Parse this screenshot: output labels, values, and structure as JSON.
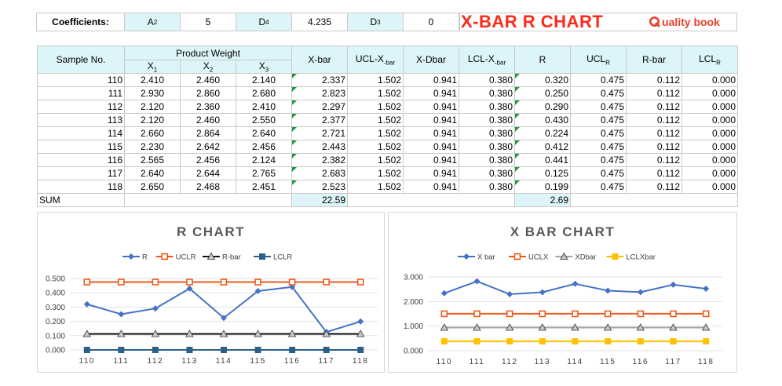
{
  "coefficients": {
    "label": "Coefficients:",
    "a2_label": "A",
    "a2_sub": "2",
    "a2_value": "5",
    "d4_label": "D",
    "d4_sub": "4",
    "d4_value": "4.235",
    "d3_label": "D",
    "d3_sub": "3",
    "d3_value": "0"
  },
  "title": "X-BAR R CHART",
  "brand": "uality book",
  "table": {
    "headers": {
      "sample": "Sample No.",
      "product_weight": "Product Weight",
      "x1": "X",
      "x1_sub": "1",
      "x2": "X",
      "x2_sub": "2",
      "x3": "X",
      "x3_sub": "3",
      "xbar": "X-bar",
      "uclx": "UCL-X",
      "uclx_sub": "-bar",
      "xdbar": "X-Dbar",
      "lclx": "LCL-X",
      "lclx_sub": "-bar",
      "r": "R",
      "uclr": "UCL",
      "uclr_sub": "R",
      "rbar": "R-bar",
      "lclr": "LCL",
      "lclr_sub": "R"
    },
    "rows": [
      [
        "110",
        "2.410",
        "2.460",
        "2.140",
        "2.337",
        "1.502",
        "0.941",
        "0.380",
        "0.320",
        "0.475",
        "0.112",
        "0.000"
      ],
      [
        "111",
        "2.930",
        "2.860",
        "2.680",
        "2.823",
        "1.502",
        "0.941",
        "0.380",
        "0.250",
        "0.475",
        "0.112",
        "0.000"
      ],
      [
        "112",
        "2.120",
        "2.360",
        "2.410",
        "2.297",
        "1.502",
        "0.941",
        "0.380",
        "0.290",
        "0.475",
        "0.112",
        "0.000"
      ],
      [
        "113",
        "2.120",
        "2.460",
        "2.550",
        "2.377",
        "1.502",
        "0.941",
        "0.380",
        "0.430",
        "0.475",
        "0.112",
        "0.000"
      ],
      [
        "114",
        "2.660",
        "2.864",
        "2.640",
        "2.721",
        "1.502",
        "0.941",
        "0.380",
        "0.224",
        "0.475",
        "0.112",
        "0.000"
      ],
      [
        "115",
        "2.230",
        "2.642",
        "2.456",
        "2.443",
        "1.502",
        "0.941",
        "0.380",
        "0.412",
        "0.475",
        "0.112",
        "0.000"
      ],
      [
        "116",
        "2.565",
        "2.456",
        "2.124",
        "2.382",
        "1.502",
        "0.941",
        "0.380",
        "0.441",
        "0.475",
        "0.112",
        "0.000"
      ],
      [
        "117",
        "2.640",
        "2.644",
        "2.765",
        "2.683",
        "1.502",
        "0.941",
        "0.380",
        "0.125",
        "0.475",
        "0.112",
        "0.000"
      ],
      [
        "118",
        "2.650",
        "2.468",
        "2.451",
        "2.523",
        "1.502",
        "0.941",
        "0.380",
        "0.199",
        "0.475",
        "0.112",
        "0.000"
      ]
    ],
    "sum_label": "SUM",
    "sum_xbar": "22.59",
    "sum_r": "2.69"
  },
  "colors": {
    "blue": "#4472c4",
    "orange": "#ed5a1c",
    "black": "#111111",
    "gray": "#a5a5a5",
    "navy": "#2d5f8a",
    "yellow": "#ffc000"
  },
  "chart_data": [
    {
      "type": "line",
      "title": "R CHART",
      "categories": [
        "110",
        "111",
        "112",
        "113",
        "114",
        "115",
        "116",
        "117",
        "118"
      ],
      "ylim": [
        0,
        0.5
      ],
      "yticks": [
        "0.000",
        "0.100",
        "0.200",
        "0.300",
        "0.400",
        "0.500"
      ],
      "grid": true,
      "legend": "top",
      "series": [
        {
          "name": "R",
          "values": [
            0.32,
            0.25,
            0.29,
            0.43,
            0.224,
            0.412,
            0.441,
            0.125,
            0.199
          ],
          "color": "#4472c4",
          "marker": "diamond"
        },
        {
          "name": "UCLR",
          "values": [
            0.475,
            0.475,
            0.475,
            0.475,
            0.475,
            0.475,
            0.475,
            0.475,
            0.475
          ],
          "color": "#ed5a1c",
          "marker": "square-open"
        },
        {
          "name": "R-bar",
          "values": [
            0.112,
            0.112,
            0.112,
            0.112,
            0.112,
            0.112,
            0.112,
            0.112,
            0.112
          ],
          "color": "#111111",
          "marker": "triangle"
        },
        {
          "name": "LCLR",
          "values": [
            0,
            0,
            0,
            0,
            0,
            0,
            0,
            0,
            0
          ],
          "color": "#2d5f8a",
          "marker": "square"
        }
      ]
    },
    {
      "type": "line",
      "title": "X BAR CHART",
      "categories": [
        "110",
        "111",
        "112",
        "113",
        "114",
        "115",
        "116",
        "117",
        "118"
      ],
      "ylim": [
        0,
        3
      ],
      "yticks": [
        "0.000",
        "1.000",
        "2.000",
        "3.000"
      ],
      "grid": true,
      "legend": "top",
      "series": [
        {
          "name": "X bar",
          "values": [
            2.337,
            2.823,
            2.297,
            2.377,
            2.721,
            2.443,
            2.382,
            2.683,
            2.523
          ],
          "color": "#4472c4",
          "marker": "diamond"
        },
        {
          "name": "UCLX",
          "values": [
            1.502,
            1.502,
            1.502,
            1.502,
            1.502,
            1.502,
            1.502,
            1.502,
            1.502
          ],
          "color": "#ed5a1c",
          "marker": "square-open"
        },
        {
          "name": "XDbar",
          "values": [
            0.941,
            0.941,
            0.941,
            0.941,
            0.941,
            0.941,
            0.941,
            0.941,
            0.941
          ],
          "color": "#a5a5a5",
          "marker": "triangle"
        },
        {
          "name": "LCLXbar",
          "values": [
            0.38,
            0.38,
            0.38,
            0.38,
            0.38,
            0.38,
            0.38,
            0.38,
            0.38
          ],
          "color": "#ffc000",
          "marker": "square"
        }
      ]
    }
  ]
}
